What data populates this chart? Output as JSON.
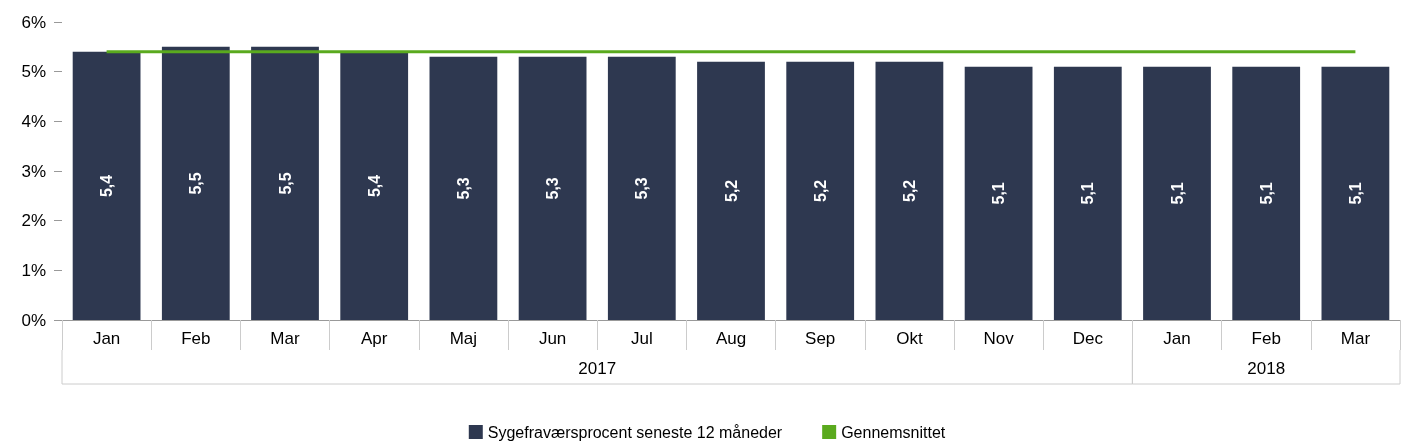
{
  "chart_data": {
    "type": "bar",
    "categories": [
      "Jan",
      "Feb",
      "Mar",
      "Apr",
      "Maj",
      "Jun",
      "Jul",
      "Aug",
      "Sep",
      "Okt",
      "Nov",
      "Dec",
      "Jan",
      "Feb",
      "Mar"
    ],
    "series": [
      {
        "name": "Sygefraværsprocent seneste 12 måneder",
        "color": "#2e3850",
        "values": [
          5.4,
          5.5,
          5.5,
          5.4,
          5.3,
          5.3,
          5.3,
          5.2,
          5.2,
          5.2,
          5.1,
          5.1,
          5.1,
          5.1,
          5.1
        ],
        "value_labels": [
          "5,4",
          "5,5",
          "5,5",
          "5,4",
          "5,3",
          "5,3",
          "5,3",
          "5,2",
          "5,2",
          "5,2",
          "5,1",
          "5,1",
          "5,1",
          "5,1",
          "5,1"
        ]
      },
      {
        "name": "Gennemsnittet",
        "type": "line",
        "color": "#5aaa1e",
        "marker": "none",
        "values": [
          5.4,
          5.4,
          5.4,
          5.4,
          5.4,
          5.4,
          5.4,
          5.4,
          5.4,
          5.4,
          5.4,
          5.4,
          5.4,
          5.4,
          5.4
        ]
      }
    ],
    "annotations": [
      "2017",
      "2018"
    ],
    "ylim": [
      0,
      6
    ],
    "yticks": [
      {
        "value": 0,
        "label": "0%"
      },
      {
        "value": 1,
        "label": "1%"
      },
      {
        "value": 2,
        "label": "2%"
      },
      {
        "value": 3,
        "label": "3%"
      },
      {
        "value": 4,
        "label": "4%"
      },
      {
        "value": 5,
        "label": "5%"
      },
      {
        "value": 6,
        "label": "6%"
      }
    ],
    "grid": false,
    "legend": "bottom"
  }
}
